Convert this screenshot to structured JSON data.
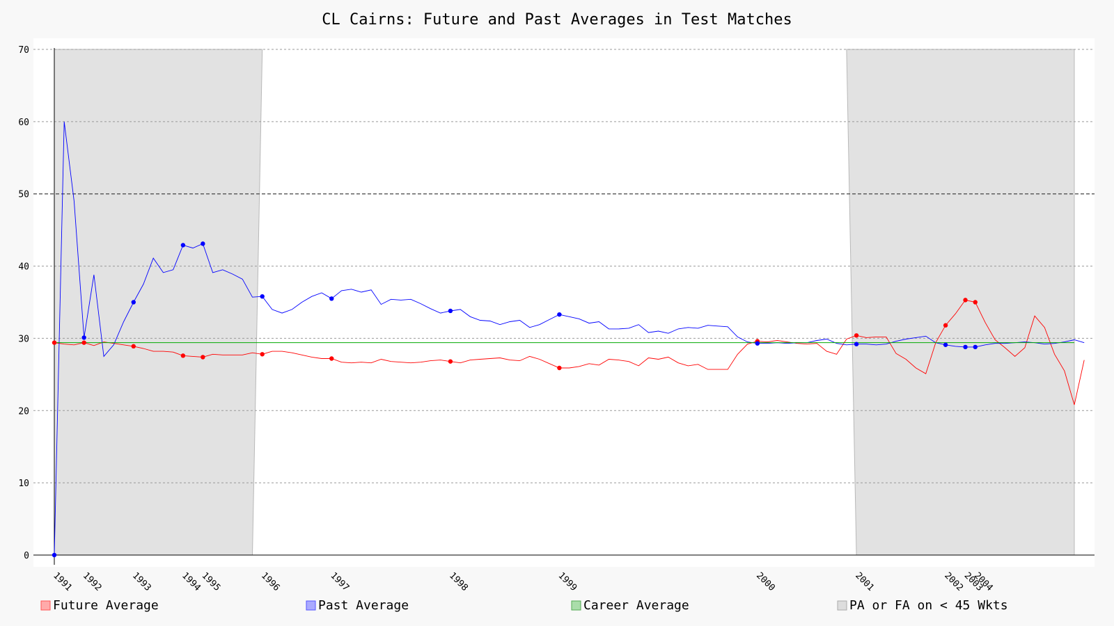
{
  "chart_data": {
    "type": "line",
    "title": "CL Cairns: Future and Past Averages in Test Matches",
    "xlabel": "",
    "ylabel": "",
    "ylim": [
      0,
      70
    ],
    "yticks": [
      0,
      10,
      20,
      30,
      40,
      50,
      60,
      70
    ],
    "grid": true,
    "legend_position": "bottom",
    "x_index_range": [
      0,
      103
    ],
    "x_ticks": [
      {
        "label": "1991",
        "x": 0
      },
      {
        "label": "1992",
        "x": 3
      },
      {
        "label": "1993",
        "x": 8
      },
      {
        "label": "1994",
        "x": 13
      },
      {
        "label": "1995",
        "x": 15
      },
      {
        "label": "1996",
        "x": 21
      },
      {
        "label": "1997",
        "x": 28
      },
      {
        "label": "1998",
        "x": 40
      },
      {
        "label": "1999",
        "x": 51
      },
      {
        "label": "2000",
        "x": 71
      },
      {
        "label": "2001",
        "x": 81
      },
      {
        "label": "2002",
        "x": 90
      },
      {
        "label": "2003",
        "x": 92
      },
      {
        "label": "2004",
        "x": 93
      }
    ],
    "series": [
      {
        "name": "Future Average",
        "color": "#ff0000",
        "values": [
          29.4,
          29.2,
          29.1,
          29.4,
          29.0,
          29.5,
          29.3,
          29.1,
          28.9,
          28.6,
          28.2,
          28.2,
          28.1,
          27.6,
          27.5,
          27.4,
          27.8,
          27.7,
          27.7,
          27.7,
          28.0,
          27.8,
          28.2,
          28.2,
          28.0,
          27.7,
          27.4,
          27.2,
          27.2,
          26.7,
          26.6,
          26.7,
          26.6,
          27.1,
          26.8,
          26.7,
          26.6,
          26.7,
          26.9,
          27.0,
          26.8,
          26.6,
          27.0,
          27.1,
          27.2,
          27.3,
          27.0,
          26.9,
          27.5,
          27.1,
          26.5,
          25.9,
          25.9,
          26.1,
          26.5,
          26.3,
          27.1,
          27.0,
          26.8,
          26.2,
          27.3,
          27.1,
          27.4,
          26.6,
          26.2,
          26.4,
          25.7,
          25.7,
          25.7,
          27.8,
          29.2,
          29.6,
          29.5,
          29.7,
          29.5,
          29.3,
          29.2,
          29.3,
          28.2,
          27.8,
          29.9,
          30.4,
          30.1,
          30.2,
          30.2,
          27.9,
          27.1,
          25.9,
          25.1,
          29.4,
          31.8,
          33.4,
          35.3,
          35.0,
          32.2,
          29.8,
          28.7,
          27.5,
          28.7,
          33.1,
          31.5,
          27.8,
          25.5,
          20.8,
          27.0
        ],
        "highlighted_x": [
          0,
          3,
          8,
          13,
          15,
          21,
          28,
          40,
          51,
          71,
          81,
          90,
          92,
          93
        ]
      },
      {
        "name": "Past Average",
        "color": "#0000ff",
        "values": [
          0.0,
          60.0,
          49.0,
          30.1,
          38.8,
          27.5,
          29.1,
          32.3,
          35.0,
          37.5,
          41.1,
          39.1,
          39.5,
          42.9,
          42.5,
          43.1,
          39.1,
          39.5,
          38.9,
          38.2,
          35.7,
          35.8,
          34.0,
          33.5,
          34.0,
          35.0,
          35.8,
          36.3,
          35.5,
          36.6,
          36.8,
          36.4,
          36.7,
          34.7,
          35.4,
          35.3,
          35.4,
          34.8,
          34.1,
          33.5,
          33.8,
          34.0,
          33.0,
          32.5,
          32.4,
          31.9,
          32.3,
          32.5,
          31.5,
          31.9,
          32.6,
          33.3,
          33.0,
          32.7,
          32.1,
          32.3,
          31.3,
          31.3,
          31.4,
          31.9,
          30.8,
          31.0,
          30.7,
          31.3,
          31.5,
          31.4,
          31.8,
          31.7,
          31.6,
          30.2,
          29.5,
          29.3,
          29.3,
          29.4,
          29.3,
          29.4,
          29.4,
          29.7,
          29.9,
          29.3,
          29.1,
          29.2,
          29.2,
          29.1,
          29.2,
          29.6,
          29.9,
          30.1,
          30.3,
          29.4,
          29.1,
          28.9,
          28.8,
          28.8,
          29.1,
          29.3,
          29.3,
          29.4,
          29.5,
          29.4,
          29.2,
          29.3,
          29.5,
          29.8,
          29.4
        ],
        "highlighted_x": [
          0,
          3,
          8,
          13,
          15,
          21,
          28,
          40,
          51,
          71,
          81,
          90,
          92,
          93
        ]
      },
      {
        "name": "Career Average",
        "color": "#00aa00",
        "values": [
          29.4
        ]
      }
    ],
    "shaded_regions": [
      {
        "name": "PA or FA on < 45 Wkts",
        "polygon": [
          [
            0,
            0
          ],
          [
            0,
            70
          ],
          [
            21,
            70
          ],
          [
            20,
            0
          ]
        ]
      },
      {
        "name": "PA or FA on < 45 Wkts",
        "polygon": [
          [
            80,
            70
          ],
          [
            103,
            70
          ],
          [
            103,
            0
          ],
          [
            81,
            0
          ]
        ]
      }
    ],
    "legend": [
      {
        "label": "Future Average",
        "fill": "#ffaaaa",
        "stroke": "#ff5555"
      },
      {
        "label": "Past Average",
        "fill": "#aaaaff",
        "stroke": "#5555ff"
      },
      {
        "label": "Career Average",
        "fill": "#aaddaa",
        "stroke": "#55aa55"
      },
      {
        "label": "PA or FA on < 45 Wkts",
        "fill": "#dddddd",
        "stroke": "#aaaaaa"
      }
    ]
  }
}
